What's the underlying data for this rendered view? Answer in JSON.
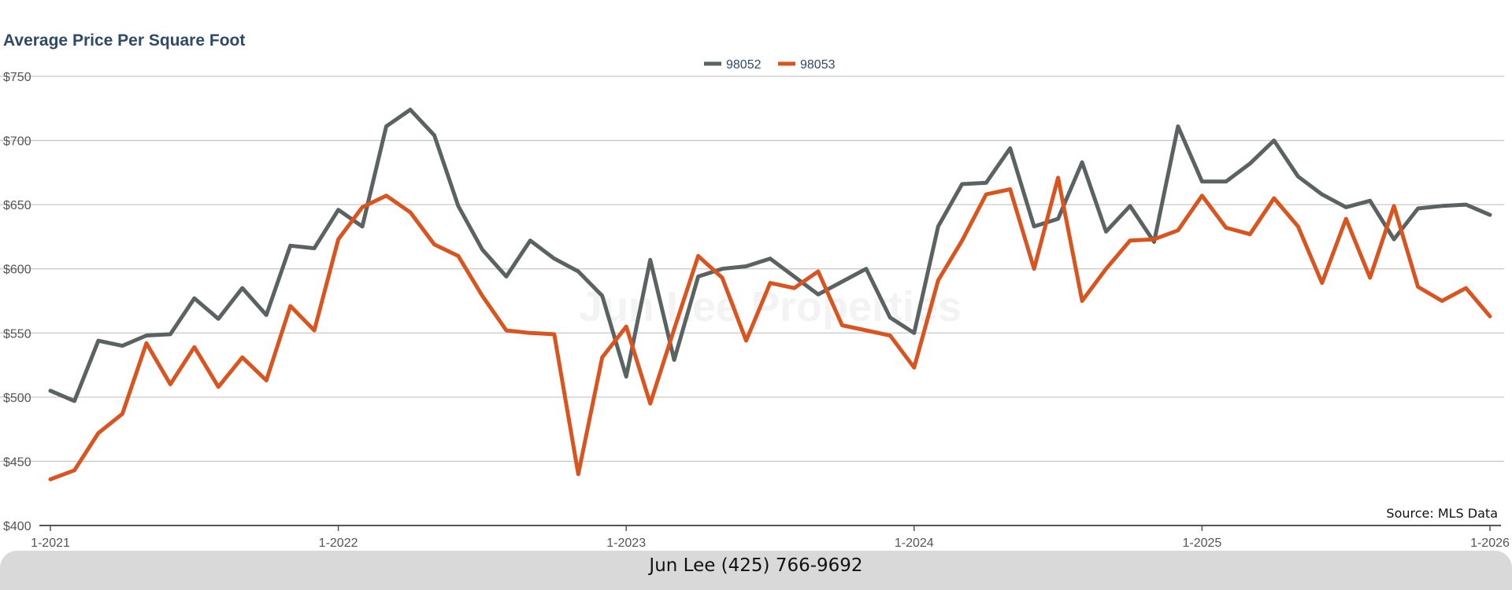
{
  "chart_data": {
    "type": "line",
    "title": "Average Price Per Square Foot",
    "x_tick_labels": [
      "1-2021",
      "1-2022",
      "1-2023",
      "1-2024",
      "1-2025",
      "1-2026"
    ],
    "y_tick_labels": [
      "$400",
      "$450",
      "$500",
      "$550",
      "$600",
      "$650",
      "$700",
      "$750"
    ],
    "ylim": [
      400,
      750
    ],
    "xlim": [
      "2021-01",
      "2026-01"
    ],
    "grid": true,
    "legend_position": "top-center",
    "x": [
      "2021-01",
      "2021-02",
      "2021-03",
      "2021-04",
      "2021-05",
      "2021-06",
      "2021-07",
      "2021-08",
      "2021-09",
      "2021-10",
      "2021-11",
      "2021-12",
      "2022-01",
      "2022-02",
      "2022-03",
      "2022-04",
      "2022-05",
      "2022-06",
      "2022-07",
      "2022-08",
      "2022-09",
      "2022-10",
      "2022-11",
      "2022-12",
      "2023-01",
      "2023-02",
      "2023-03",
      "2023-04",
      "2023-05",
      "2023-06",
      "2023-07",
      "2023-08",
      "2023-09",
      "2023-10",
      "2023-11",
      "2023-12",
      "2024-01",
      "2024-02",
      "2024-03",
      "2024-04",
      "2024-05",
      "2024-06",
      "2024-07",
      "2024-08",
      "2024-09",
      "2024-10",
      "2024-11",
      "2024-12",
      "2025-01",
      "2025-02",
      "2025-03",
      "2025-04",
      "2025-05",
      "2025-06",
      "2025-07",
      "2025-08",
      "2025-09",
      "2025-10",
      "2025-11",
      "2025-12",
      "2026-01"
    ],
    "series": [
      {
        "name": "98052",
        "color": "#5a6262",
        "values": [
          505,
          497,
          544,
          540,
          548,
          549,
          577,
          561,
          585,
          564,
          618,
          616,
          646,
          633,
          711,
          724,
          704,
          649,
          615,
          594,
          622,
          608,
          598,
          579,
          516,
          607,
          529,
          594,
          600,
          602,
          608,
          594,
          580,
          590,
          600,
          562,
          550,
          633,
          666,
          667,
          694,
          633,
          639,
          683,
          629,
          649,
          621,
          711,
          668,
          668,
          682,
          700,
          672,
          658,
          648,
          653,
          623,
          647,
          649,
          650,
          642
        ]
      },
      {
        "name": "98053",
        "color": "#d9541e",
        "values": [
          436,
          443,
          472,
          487,
          542,
          510,
          539,
          508,
          531,
          513,
          571,
          552,
          623,
          648,
          657,
          644,
          619,
          610,
          579,
          552,
          550,
          549,
          440,
          531,
          555,
          495,
          553,
          610,
          593,
          544,
          589,
          585,
          598,
          556,
          552,
          548,
          523,
          591,
          622,
          658,
          662,
          600,
          671,
          575,
          600,
          622,
          623,
          630,
          657,
          632,
          627,
          655,
          633,
          589,
          639,
          593,
          649,
          586,
          575,
          585,
          563
        ]
      }
    ],
    "source_note": "Source: MLS Data"
  },
  "watermark": "Jun Lee Properties",
  "footer": {
    "text": "Jun Lee (425) 766-9692"
  }
}
